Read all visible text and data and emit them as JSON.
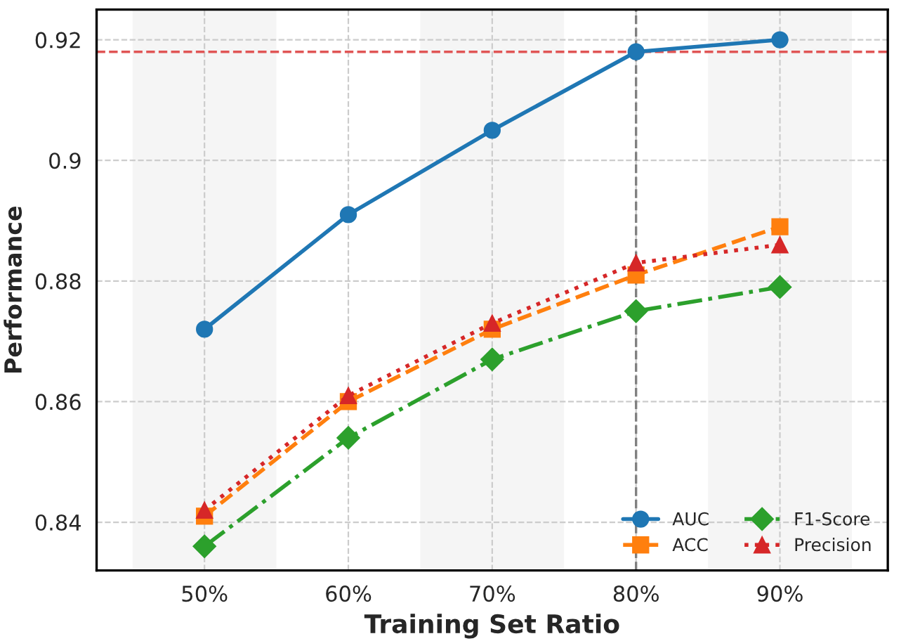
{
  "chart_data": {
    "type": "line",
    "xlabel": "Training Set Ratio",
    "ylabel": "Performance",
    "x": [
      50,
      60,
      70,
      80,
      90
    ],
    "xlim": [
      42.5,
      97.5
    ],
    "xticks": [
      {
        "value": 50,
        "label": "50%"
      },
      {
        "value": 60,
        "label": "60%"
      },
      {
        "value": 70,
        "label": "70%"
      },
      {
        "value": 80,
        "label": "80%"
      },
      {
        "value": 90,
        "label": "90%"
      }
    ],
    "ylim": [
      0.832,
      0.925
    ],
    "yticks": [
      0.84,
      0.86,
      0.88,
      0.9,
      0.92
    ],
    "series": [
      {
        "name": "AUC",
        "color": "#1f77b4",
        "values": [
          0.872,
          0.891,
          0.905,
          0.918,
          0.92
        ],
        "marker": "circle",
        "line_style": "solid"
      },
      {
        "name": "ACC",
        "color": "#ff7f0e",
        "values": [
          0.841,
          0.86,
          0.872,
          0.881,
          0.889
        ],
        "marker": "square",
        "line_style": "dashed"
      },
      {
        "name": "F1-Score",
        "color": "#2ca02c",
        "values": [
          0.836,
          0.854,
          0.867,
          0.875,
          0.879
        ],
        "marker": "diamond",
        "line_style": "dashdot"
      },
      {
        "name": "Precision",
        "color": "#d62728",
        "values": [
          0.842,
          0.861,
          0.873,
          0.883,
          0.886
        ],
        "marker": "triangle",
        "line_style": "dotted"
      }
    ],
    "ref_lines": [
      {
        "axis": "y",
        "value": 0.918,
        "color": "#e05555",
        "line_style": "dashed"
      },
      {
        "axis": "x",
        "value": 80,
        "color": "#808080",
        "line_style": "dashed"
      }
    ],
    "bands": [
      {
        "axis": "x",
        "from": 45,
        "to": 55,
        "color": "#f5f5f5"
      },
      {
        "axis": "x",
        "from": 65,
        "to": 75,
        "color": "#f5f5f5"
      },
      {
        "axis": "x",
        "from": 85,
        "to": 95,
        "color": "#f5f5f5"
      }
    ],
    "grid": true,
    "legend": "bottom right"
  }
}
